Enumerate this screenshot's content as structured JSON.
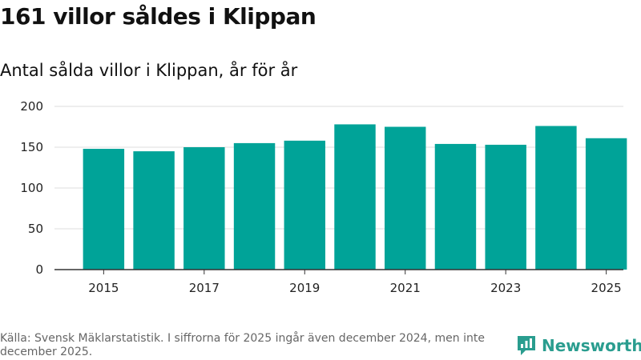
{
  "header": {
    "title": "161 villor såldes i Klippan",
    "subtitle": "Antal sålda villor i Klippan, år för år"
  },
  "footer": {
    "source": "Källa: Svensk Mäklarstatistik. I siffrorna för 2025 ingår även december 2024, men inte december 2025.",
    "brand": "Newsworthy"
  },
  "colors": {
    "bar": "#00a398",
    "grid": "#dddddd",
    "axis": "#333333",
    "brand": "#2a9d8f"
  },
  "chart_data": {
    "type": "bar",
    "title": "Antal sålda villor i Klippan, år för år",
    "xlabel": "",
    "ylabel": "",
    "categories": [
      "2015",
      "2016",
      "2017",
      "2018",
      "2019",
      "2020",
      "2021",
      "2022",
      "2023",
      "2024",
      "2025"
    ],
    "values": [
      148,
      145,
      150,
      155,
      158,
      178,
      175,
      154,
      153,
      176,
      161
    ],
    "x_tick_labels": [
      "2015",
      "2017",
      "2019",
      "2021",
      "2023",
      "2025"
    ],
    "y_ticks": [
      0,
      50,
      100,
      150,
      200
    ],
    "ylim": [
      0,
      200
    ],
    "grid": true
  }
}
